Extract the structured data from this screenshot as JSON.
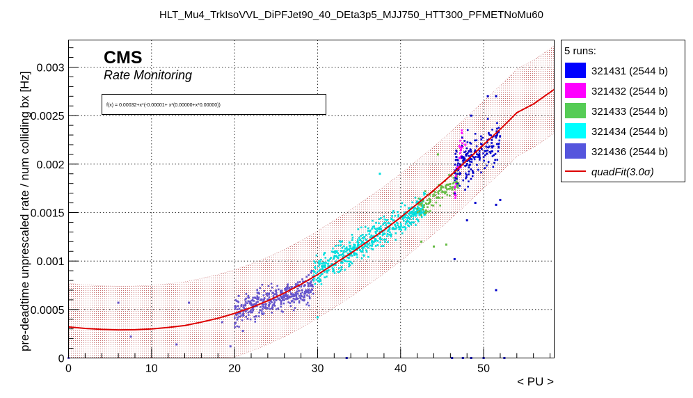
{
  "chart_data": {
    "type": "scatter",
    "title": "HLT_Mu4_TrkIsoVVL_DiPFJet90_40_DEta3p5_MJJ750_HTT300_PFMETNoMu60",
    "xlabel": "< PU >",
    "ylabel": "pre-deadtime unprescaled rate / num colliding bx [Hz]",
    "xlim": [
      0,
      58.5
    ],
    "ylim": [
      0,
      0.00328
    ],
    "x_ticks": [
      {
        "value": 0,
        "label": "0"
      },
      {
        "value": 10,
        "label": "10"
      },
      {
        "value": 20,
        "label": "20"
      },
      {
        "value": 30,
        "label": "30"
      },
      {
        "value": 40,
        "label": "40"
      },
      {
        "value": 50,
        "label": "50"
      }
    ],
    "y_ticks": [
      {
        "value": 0,
        "label": "0"
      },
      {
        "value": 0.0005,
        "label": "0.0005"
      },
      {
        "value": 0.001,
        "label": "0.001"
      },
      {
        "value": 0.0015,
        "label": "0.0015"
      },
      {
        "value": 0.002,
        "label": "0.002"
      },
      {
        "value": 0.0025,
        "label": "0.0025"
      },
      {
        "value": 0.003,
        "label": "0.003"
      }
    ],
    "grid": true,
    "annotations": {
      "experiment": "CMS",
      "subtitle": "Rate Monitoring",
      "fit_formula": "f(x) = 0.00032+x*(-0.00001+ x*(0.00000+x*0.00000))"
    },
    "legend": {
      "position": "right",
      "header": "5 runs:",
      "entries": [
        {
          "label": "321431 (2544 b)",
          "color": "#0000ff"
        },
        {
          "label": "321432 (2544 b)",
          "color": "#ff00ff"
        },
        {
          "label": "321433 (2544 b)",
          "color": "#55cc55"
        },
        {
          "label": "321434 (2544 b)",
          "color": "#00ffff"
        },
        {
          "label": "321436 (2544 b)",
          "color": "#5555dd"
        },
        {
          "label": "quadFit(3.0σ)",
          "color": "#dd0000"
        }
      ]
    },
    "fit": {
      "name": "quadFit(3.0σ)",
      "color": "#dd0000",
      "x": [
        0,
        2,
        4,
        6,
        8,
        10,
        12,
        14,
        16,
        18,
        20,
        22,
        24,
        26,
        28,
        30,
        32,
        34,
        36,
        38,
        40,
        42,
        44,
        46,
        48,
        50,
        52,
        54,
        56,
        58.5
      ],
      "y": [
        0.00032,
        0.000305,
        0.000295,
        0.00029,
        0.000292,
        0.0003,
        0.000315,
        0.000335,
        0.00037,
        0.00041,
        0.00046,
        0.00052,
        0.00059,
        0.00067,
        0.00076,
        0.00086,
        0.00097,
        0.00108,
        0.0012,
        0.00132,
        0.00145,
        0.00159,
        0.00173,
        0.00188,
        0.00204,
        0.0022,
        0.00236,
        0.00253,
        0.00262,
        0.00277
      ],
      "band_halfwidth": 0.00045
    },
    "series": [
      {
        "name": "321436 (2544 b)",
        "color": "#6655cc",
        "clusters": [
          {
            "x_range": [
              20,
              29.5
            ],
            "y_at_start": 0.00047,
            "y_at_end": 0.00074,
            "spread": 0.00012,
            "count": 380
          }
        ],
        "points": [
          [
            0.0,
            0.0
          ],
          [
            6,
            0.00057
          ],
          [
            7.5,
            0.00022
          ],
          [
            13,
            0.00014
          ],
          [
            14.5,
            0.00057
          ],
          [
            18.5,
            0.00037
          ],
          [
            20.5,
            0.00064
          ],
          [
            21,
            0.00028
          ],
          [
            19.5,
            0.00012
          ]
        ]
      },
      {
        "name": "321434 (2544 b)",
        "color": "#00dddd",
        "clusters": [
          {
            "x_range": [
              29.5,
              43
            ],
            "y_at_start": 0.00086,
            "y_at_end": 0.00158,
            "spread": 0.00012,
            "count": 520
          }
        ],
        "points": [
          [
            37.5,
            0.0019
          ],
          [
            30,
            0.00042
          ],
          [
            31,
            0.00098
          ]
        ]
      },
      {
        "name": "321433 (2544 b)",
        "color": "#66bb44",
        "clusters": [
          {
            "x_range": [
              42,
              47
            ],
            "y_at_start": 0.00153,
            "y_at_end": 0.00185,
            "spread": 0.00011,
            "count": 120
          }
        ],
        "points": [
          [
            44,
            0.00115
          ],
          [
            45.5,
            0.00117
          ],
          [
            42.5,
            0.0012
          ],
          [
            44.5,
            0.0021
          ]
        ]
      },
      {
        "name": "321432 (2544 b)",
        "color": "#ff00ff",
        "clusters": [
          {
            "x_range": [
              46.5,
              47.5
            ],
            "y_at_start": 0.0017,
            "y_at_end": 0.0023,
            "spread": 0.00015,
            "count": 40
          }
        ],
        "points": [
          [
            47.8,
            0.0022
          ]
        ]
      },
      {
        "name": "321431 (2544 b)",
        "color": "#0000cc",
        "clusters": [
          {
            "x_range": [
              46.5,
              52
            ],
            "y_at_start": 0.00195,
            "y_at_end": 0.00225,
            "spread": 0.00018,
            "count": 200
          }
        ],
        "points": [
          [
            48.5,
            0.0025
          ],
          [
            50.5,
            0.0027
          ],
          [
            51.5,
            0.0027
          ],
          [
            51.5,
            0.0007
          ],
          [
            46.5,
            0.00102
          ],
          [
            48,
            0.00142
          ],
          [
            51.5,
            0.00158
          ],
          [
            52,
            0.00163
          ],
          [
            49,
            0.0016
          ],
          [
            33.5,
            0.0
          ],
          [
            47.5,
            0.0
          ],
          [
            48.5,
            0.0
          ],
          [
            50,
            0.0
          ],
          [
            52.5,
            0.0
          ],
          [
            46.2,
            0.0
          ]
        ]
      }
    ]
  }
}
